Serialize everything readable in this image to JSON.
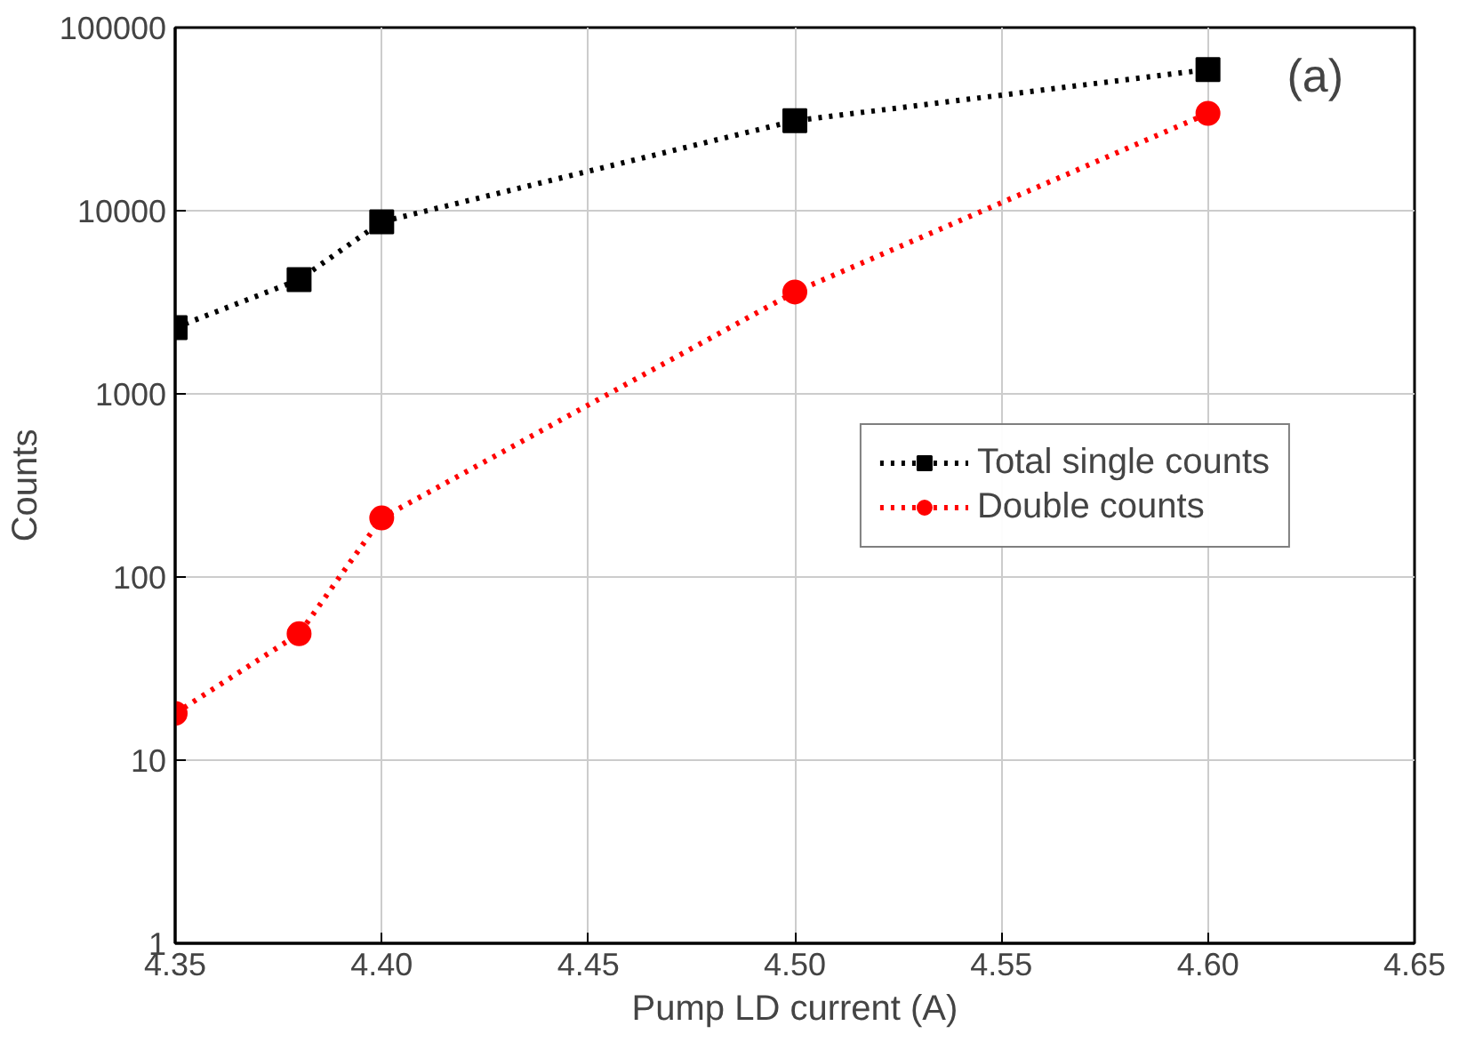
{
  "chart_data": {
    "type": "line",
    "xlabel": "Pump LD current (A)",
    "ylabel": "Counts",
    "annotations": [
      "(a)"
    ],
    "x": [
      4.35,
      4.38,
      4.4,
      4.5,
      4.6
    ],
    "series": [
      {
        "name": "Total single counts",
        "color": "#000000",
        "marker": "square",
        "values": [
          2300,
          4200,
          8700,
          31000,
          59000
        ]
      },
      {
        "name": "Double counts",
        "color": "#ff0000",
        "marker": "circle",
        "values": [
          18,
          49,
          210,
          3600,
          34000
        ]
      }
    ],
    "xlim": [
      4.35,
      4.65
    ],
    "xticks": [
      {
        "value": 4.35,
        "label": "4.35"
      },
      {
        "value": 4.4,
        "label": "4.40"
      },
      {
        "value": 4.45,
        "label": "4.45"
      },
      {
        "value": 4.5,
        "label": "4.50"
      },
      {
        "value": 4.55,
        "label": "4.55"
      },
      {
        "value": 4.6,
        "label": "4.60"
      },
      {
        "value": 4.65,
        "label": "4.65"
      }
    ],
    "ylim": [
      1,
      100000
    ],
    "yticks": [
      1,
      10,
      100,
      1000,
      10000,
      100000
    ],
    "log": true,
    "grid": true,
    "legend": "right",
    "line_style": "dotted"
  }
}
